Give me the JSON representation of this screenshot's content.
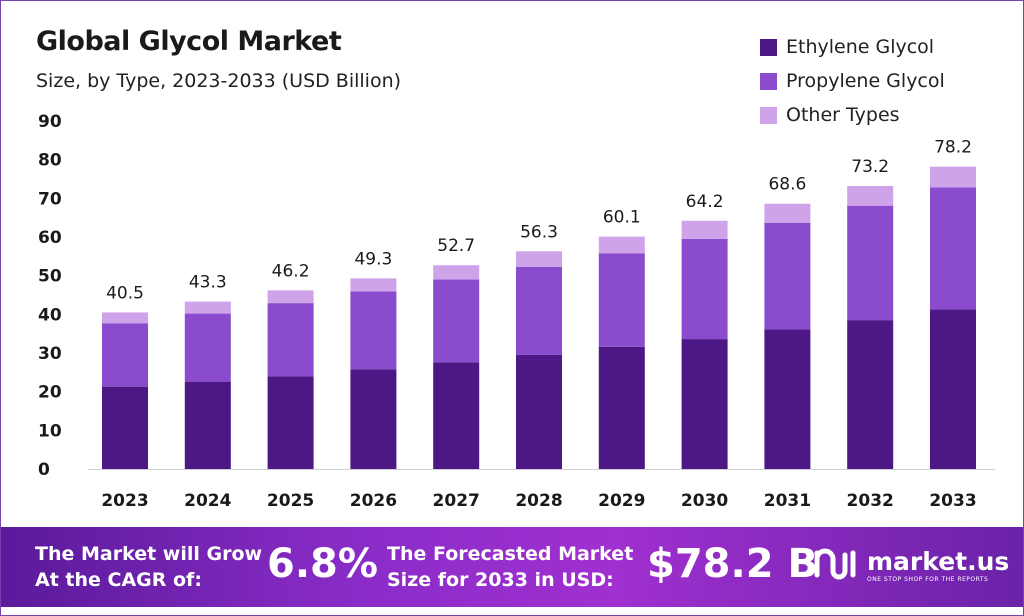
{
  "colors": {
    "ethylene": "#4d1785",
    "propylene": "#8a4ccc",
    "other": "#cfa3ea",
    "banner": "#8a2cc8"
  },
  "chart_data": {
    "type": "bar",
    "stacked": true,
    "title": "Global Glycol Market",
    "subtitle": "Size, by Type, 2023-2033 (USD Billion)",
    "xlabel": "",
    "ylabel": "",
    "ylim": [
      0,
      90
    ],
    "yticks": [
      "0",
      "10",
      "20",
      "30",
      "40",
      "50",
      "60",
      "70",
      "80",
      "90"
    ],
    "grid": false,
    "legend_position": "top-right",
    "categories": [
      "2023",
      "2024",
      "2025",
      "2026",
      "2027",
      "2028",
      "2029",
      "2030",
      "2031",
      "2032",
      "2033"
    ],
    "series": [
      {
        "name": "Ethylene Glycol",
        "values": [
          21.3,
          22.6,
          24.0,
          25.8,
          27.6,
          29.5,
          31.6,
          33.6,
          36.1,
          38.5,
          41.3
        ]
      },
      {
        "name": "Propylene Glycol",
        "values": [
          16.4,
          17.6,
          18.9,
          20.1,
          21.4,
          22.8,
          24.2,
          25.9,
          27.6,
          29.6,
          31.5
        ]
      },
      {
        "name": "Other Types",
        "values": [
          2.8,
          3.1,
          3.3,
          3.4,
          3.7,
          4.0,
          4.3,
          4.7,
          4.9,
          5.1,
          5.4
        ]
      }
    ],
    "totals": [
      "40.5",
      "43.3",
      "46.2",
      "49.3",
      "52.7",
      "56.3",
      "60.1",
      "64.2",
      "68.6",
      "73.2",
      "78.2"
    ]
  },
  "banner": {
    "cagr_label_1": "The Market will Grow",
    "cagr_label_2": "At the CAGR of:",
    "cagr_value": "6.8%",
    "forecast_label_1": "The Forecasted Market",
    "forecast_label_2": "Size for 2033 in USD:",
    "forecast_value": "$78.2 B",
    "logo_name": "market.us",
    "logo_tagline": "ONE STOP SHOP FOR THE REPORTS"
  }
}
